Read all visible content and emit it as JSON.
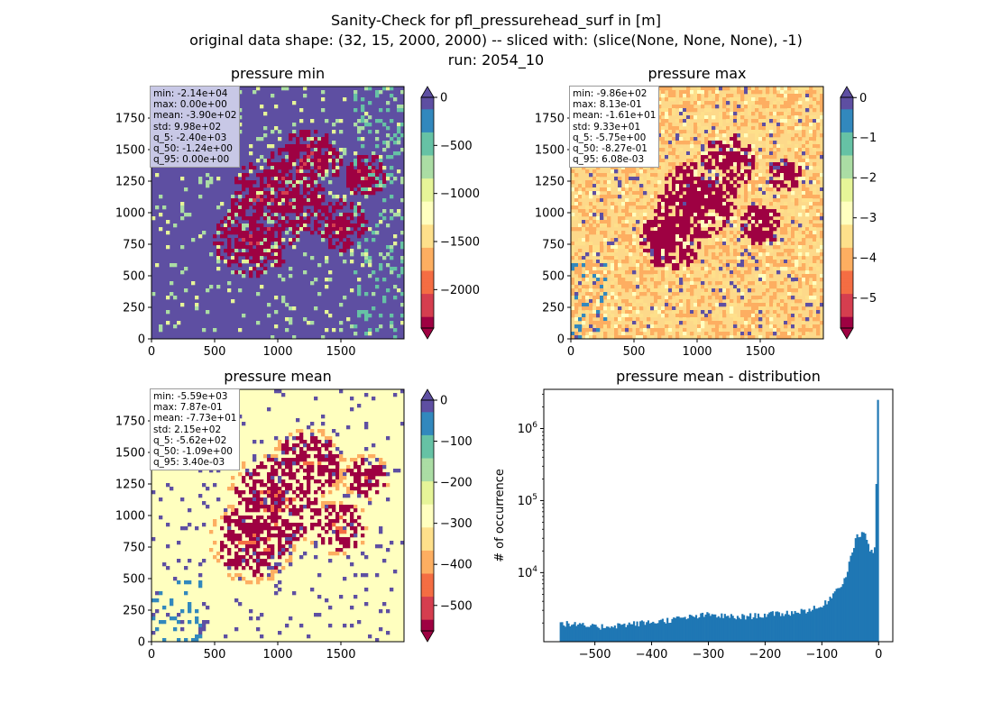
{
  "figure": {
    "title_lines": [
      "Sanity-Check for pfl_pressurehead_surf in [m]",
      "original data shape: (32, 15, 2000, 2000) -- sliced with: (slice(None, None, None), -1)",
      "run: 2054_10"
    ]
  },
  "colors": {
    "spectral": [
      "#9e0142",
      "#d53e4f",
      "#f46d43",
      "#fdae61",
      "#fee08b",
      "#ffffbf",
      "#e6f598",
      "#abdda4",
      "#66c2a5",
      "#3288bd",
      "#5e4fa2"
    ],
    "bar": "#1f77b4",
    "statbox_bg": "#ffffff",
    "statbox_bg_min": "#c8c8e6"
  },
  "panels": [
    {
      "title": "pressure min",
      "x_ticks": [
        "0",
        "500",
        "1000",
        "1500"
      ],
      "y_ticks": [
        "0",
        "250",
        "500",
        "750",
        "1000",
        "1250",
        "1500",
        "1750"
      ],
      "stats": [
        "min: -2.14e+04",
        "max: 0.00e+00",
        "mean: -3.90e+02",
        "std: 9.98e+02",
        "q_5: -2.40e+03",
        "q_50: -1.24e+00",
        "q_95: 0.00e+00"
      ],
      "colorbar": {
        "vmin": -2400,
        "vmax": 0,
        "ticks": [
          "0",
          "−500",
          "−1000",
          "−1500",
          "−2000"
        ],
        "tick_values": [
          0,
          -500,
          -1000,
          -1500,
          -2000
        ]
      },
      "map_style": "min"
    },
    {
      "title": "pressure max",
      "x_ticks": [
        "0",
        "500",
        "1000",
        "1500"
      ],
      "y_ticks": [
        "0",
        "250",
        "500",
        "750",
        "1000",
        "1250",
        "1500",
        "1750"
      ],
      "stats": [
        "min: -9.86e+02",
        "max: 8.13e-01",
        "mean: -1.61e+01",
        "std: 9.33e+01",
        "q_5: -5.75e+00",
        "q_50: -8.27e-01",
        "q_95: 6.08e-03"
      ],
      "colorbar": {
        "vmin": -5.75,
        "vmax": 0.0061,
        "ticks": [
          "0",
          "−1",
          "−2",
          "−3",
          "−4",
          "−5"
        ],
        "tick_values": [
          0,
          -1,
          -2,
          -3,
          -4,
          -5
        ]
      },
      "map_style": "max"
    },
    {
      "title": "pressure mean",
      "x_ticks": [
        "0",
        "500",
        "1000",
        "1500"
      ],
      "y_ticks": [
        "0",
        "250",
        "500",
        "750",
        "1000",
        "1250",
        "1500",
        "1750"
      ],
      "stats": [
        "min: -5.59e+03",
        "max: 7.87e-01",
        "mean: -7.73e+01",
        "std: 2.15e+02",
        "q_5: -5.62e+02",
        "q_50: -1.09e+00",
        "q_95: 3.40e-03"
      ],
      "colorbar": {
        "vmin": -562,
        "vmax": 0.0034,
        "ticks": [
          "0",
          "−100",
          "−200",
          "−300",
          "−400",
          "−500"
        ],
        "tick_values": [
          0,
          -100,
          -200,
          -300,
          -400,
          -500
        ]
      },
      "map_style": "mean"
    }
  ],
  "chart_data": {
    "type": "bar",
    "title": "pressure mean - distribution",
    "xlabel": "",
    "ylabel": "# of occurrence",
    "yscale": "log",
    "xlim": [
      -590,
      25
    ],
    "ylim": [
      1100,
      3500000
    ],
    "x_ticks": [
      -500,
      -400,
      -300,
      -200,
      -100,
      0
    ],
    "x_tick_labels": [
      "−500",
      "−400",
      "−300",
      "−200",
      "−100",
      "0"
    ],
    "y_ticks": [
      10000,
      100000,
      1000000
    ],
    "y_tick_labels": [
      "10^4",
      "10^5",
      "10^6"
    ],
    "bin_edges_range": [
      -562,
      0
    ],
    "bins": 200,
    "key_counts": [
      {
        "x": -560,
        "count": 2000
      },
      {
        "x": -500,
        "count": 1750
      },
      {
        "x": -400,
        "count": 2050
      },
      {
        "x": -300,
        "count": 2600
      },
      {
        "x": -250,
        "count": 2400
      },
      {
        "x": -200,
        "count": 2600
      },
      {
        "x": -150,
        "count": 2800
      },
      {
        "x": -100,
        "count": 3300
      },
      {
        "x": -60,
        "count": 8000
      },
      {
        "x": -40,
        "count": 30000
      },
      {
        "x": -25,
        "count": 38000
      },
      {
        "x": -15,
        "count": 20000
      },
      {
        "x": -8,
        "count": 20000
      },
      {
        "x": -4,
        "count": 30000
      },
      {
        "x": -2,
        "count": 170000
      },
      {
        "x": 0,
        "count": 2500000
      }
    ]
  }
}
